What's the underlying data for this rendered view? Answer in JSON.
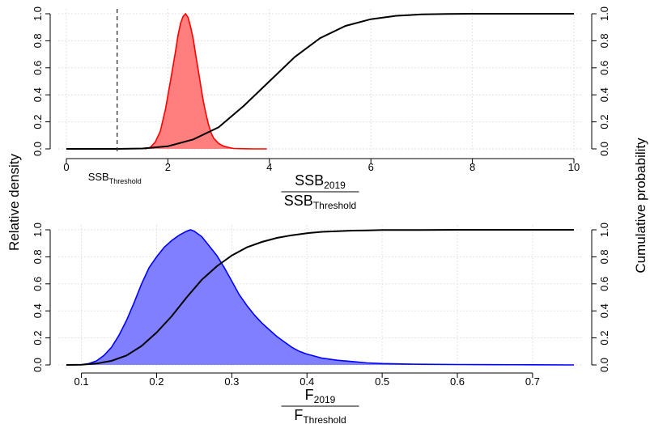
{
  "chart_data": [
    {
      "type": "area",
      "ylabel_left": "Relative density",
      "ylabel_right": "Cumulative probability",
      "xlabel": {
        "numerator": {
          "base": "SSB",
          "sub": "2019"
        },
        "denominator": {
          "base": "SSB",
          "sub": "Threshold"
        }
      },
      "xlim": [
        0,
        10
      ],
      "ylim": [
        0,
        1
      ],
      "x_ticks": [
        0,
        2,
        4,
        6,
        8,
        10
      ],
      "x_tick_labels": [
        "0",
        "2",
        "4",
        "6",
        "8",
        "10"
      ],
      "y_ticks": [
        0,
        0.2,
        0.4,
        0.6,
        0.8,
        1
      ],
      "y_tick_labels": [
        "0.0",
        "0.2",
        "0.4",
        "0.6",
        "0.8",
        "1.0"
      ],
      "grid": true,
      "threshold_line": {
        "x": 1.0,
        "label": {
          "base": "SSB",
          "sub": "Threshold"
        }
      },
      "density_color": "#ff0000",
      "density_fill": "#ff7f7f",
      "density": {
        "x": [
          1.55,
          1.65,
          1.75,
          1.85,
          1.95,
          2.05,
          2.15,
          2.2,
          2.25,
          2.3,
          2.35,
          2.4,
          2.45,
          2.5,
          2.55,
          2.6,
          2.65,
          2.7,
          2.75,
          2.8,
          2.85,
          2.9,
          3.0,
          3.1,
          3.2,
          3.3,
          3.5,
          3.7,
          3.95
        ],
        "y": [
          0.0,
          0.01,
          0.05,
          0.13,
          0.29,
          0.5,
          0.72,
          0.84,
          0.93,
          0.98,
          1.0,
          0.97,
          0.9,
          0.81,
          0.69,
          0.58,
          0.46,
          0.35,
          0.26,
          0.18,
          0.12,
          0.08,
          0.04,
          0.02,
          0.01,
          0.003,
          0.001,
          0.0,
          0.0
        ]
      },
      "cumulative": {
        "x": [
          0,
          0.5,
          1,
          1.5,
          2,
          2.5,
          3,
          3.5,
          4,
          4.5,
          5,
          5.5,
          6,
          6.5,
          7,
          7.5,
          8,
          8.5,
          9,
          9.5,
          10
        ],
        "y": [
          0.0,
          0.0,
          0.0,
          0.003,
          0.02,
          0.07,
          0.16,
          0.32,
          0.5,
          0.68,
          0.82,
          0.91,
          0.96,
          0.985,
          0.995,
          0.998,
          1.0,
          1.0,
          1.0,
          1.0,
          1.0
        ]
      }
    },
    {
      "type": "area",
      "xlabel": {
        "numerator": {
          "base": "F",
          "sub": "2019"
        },
        "denominator": {
          "base": "F",
          "sub": "Threshold"
        }
      },
      "xlim": [
        0.08,
        0.755
      ],
      "ylim": [
        0,
        1
      ],
      "x_ticks": [
        0.1,
        0.2,
        0.3,
        0.4,
        0.5,
        0.6,
        0.7
      ],
      "x_tick_labels": [
        "0.1",
        "0.2",
        "0.3",
        "0.4",
        "0.5",
        "0.6",
        "0.7"
      ],
      "y_ticks": [
        0,
        0.2,
        0.4,
        0.6,
        0.8,
        1
      ],
      "y_tick_labels": [
        "0.0",
        "0.2",
        "0.4",
        "0.6",
        "0.8",
        "1.0"
      ],
      "grid": true,
      "density_color": "#0000ff",
      "density_fill": "#7f7fff",
      "density": {
        "x": [
          0.08,
          0.1,
          0.11,
          0.12,
          0.13,
          0.14,
          0.15,
          0.16,
          0.17,
          0.18,
          0.19,
          0.2,
          0.21,
          0.22,
          0.23,
          0.24,
          0.245,
          0.25,
          0.26,
          0.27,
          0.28,
          0.29,
          0.3,
          0.31,
          0.32,
          0.33,
          0.34,
          0.35,
          0.36,
          0.37,
          0.38,
          0.39,
          0.4,
          0.42,
          0.44,
          0.46,
          0.48,
          0.5,
          0.55,
          0.6,
          0.65,
          0.7,
          0.755
        ],
        "y": [
          0.0,
          0.002,
          0.01,
          0.03,
          0.07,
          0.13,
          0.22,
          0.33,
          0.46,
          0.6,
          0.72,
          0.8,
          0.87,
          0.92,
          0.96,
          0.99,
          1.0,
          0.99,
          0.95,
          0.88,
          0.81,
          0.72,
          0.62,
          0.52,
          0.44,
          0.37,
          0.31,
          0.26,
          0.21,
          0.17,
          0.13,
          0.1,
          0.08,
          0.05,
          0.035,
          0.025,
          0.015,
          0.01,
          0.005,
          0.003,
          0.002,
          0.001,
          0.0
        ]
      },
      "cumulative": {
        "x": [
          0.08,
          0.1,
          0.12,
          0.14,
          0.16,
          0.18,
          0.2,
          0.22,
          0.24,
          0.26,
          0.28,
          0.3,
          0.32,
          0.34,
          0.36,
          0.38,
          0.4,
          0.42,
          0.44,
          0.46,
          0.48,
          0.5,
          0.55,
          0.6,
          0.65,
          0.7,
          0.755
        ],
        "y": [
          0.0,
          0.001,
          0.01,
          0.03,
          0.07,
          0.14,
          0.24,
          0.36,
          0.5,
          0.63,
          0.73,
          0.81,
          0.87,
          0.91,
          0.94,
          0.96,
          0.975,
          0.985,
          0.99,
          0.994,
          0.996,
          0.998,
          0.999,
          1.0,
          1.0,
          1.0,
          1.0
        ]
      }
    }
  ]
}
